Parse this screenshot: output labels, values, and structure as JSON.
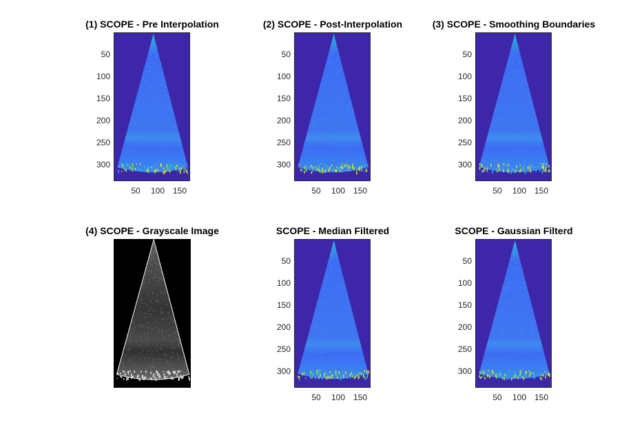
{
  "colors": {
    "parula_background": "#3e26a8",
    "parula_cone": "#3c6cf4",
    "parula_highlight": "#2db6d2",
    "parula_bright": "#d7e219",
    "gray_background": "#000000",
    "gray_cone": "#3a3a3a",
    "gray_edge": "#ffffff"
  },
  "panels": [
    {
      "title": "(1) SCOPE - Pre Interpolation",
      "style": "parula",
      "yticks": [
        "50",
        "100",
        "150",
        "200",
        "250",
        "300"
      ],
      "xticks": [
        "50",
        "100",
        "150"
      ]
    },
    {
      "title": "(2) SCOPE - Post-Interpolation",
      "style": "parula",
      "yticks": [
        "50",
        "100",
        "150",
        "200",
        "250",
        "300"
      ],
      "xticks": [
        "50",
        "100",
        "150"
      ]
    },
    {
      "title": "(3) SCOPE - Smoothing Boundaries",
      "style": "parula",
      "yticks": [
        "50",
        "100",
        "150",
        "200",
        "250",
        "300"
      ],
      "xticks": [
        "50",
        "100",
        "150"
      ]
    },
    {
      "title": "(4) SCOPE - Grayscale Image",
      "style": "gray",
      "yticks": [],
      "xticks": []
    },
    {
      "title": "SCOPE - Median Filtered",
      "style": "parula",
      "yticks": [
        "50",
        "100",
        "150",
        "200",
        "250",
        "300"
      ],
      "xticks": [
        "50",
        "100",
        "150"
      ]
    },
    {
      "title": "SCOPE - Gaussian Filterd",
      "style": "parula",
      "yticks": [
        "50",
        "100",
        "150",
        "200",
        "250",
        "300"
      ],
      "xticks": [
        "50",
        "100",
        "150"
      ]
    }
  ]
}
